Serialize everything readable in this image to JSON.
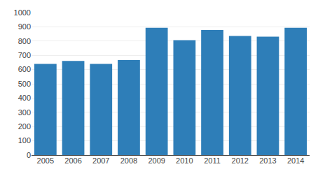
{
  "chart_data": {
    "type": "bar",
    "categories": [
      "2005",
      "2006",
      "2007",
      "2008",
      "2009",
      "2010",
      "2011",
      "2012",
      "2013",
      "2014"
    ],
    "values": [
      640,
      660,
      640,
      667,
      893,
      806,
      878,
      836,
      831,
      893
    ],
    "color": "#2e7eb8",
    "ylim": [
      0,
      1000
    ],
    "yticks": [
      0,
      100,
      200,
      300,
      400,
      500,
      600,
      700,
      800,
      900,
      1000
    ],
    "grid": true
  }
}
